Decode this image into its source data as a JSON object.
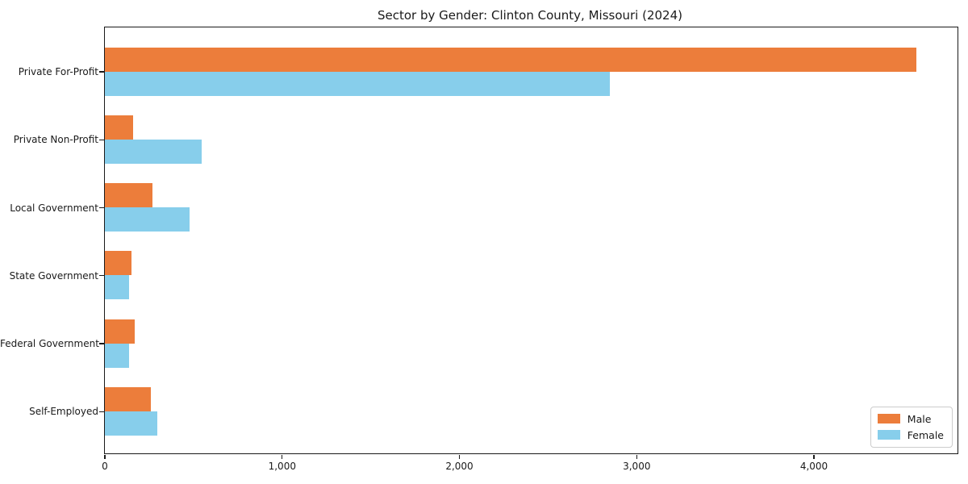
{
  "chart_data": {
    "type": "bar",
    "orientation": "horizontal",
    "title": "Sector by Gender: Clinton County, Missouri (2024)",
    "categories": [
      "Private For-Profit",
      "Private Non-Profit",
      "Local Government",
      "State Government",
      "Federal Government",
      "Self-Employed"
    ],
    "series": [
      {
        "name": "Male",
        "color": "#ec7d3b",
        "values": [
          4580,
          160,
          270,
          150,
          170,
          260
        ]
      },
      {
        "name": "Female",
        "color": "#87ceeb",
        "values": [
          2850,
          550,
          480,
          140,
          140,
          300
        ]
      }
    ],
    "xlabel": "",
    "ylabel": "",
    "xlim": [
      0,
      4810
    ],
    "xticks": [
      0,
      1000,
      2000,
      3000,
      4000
    ],
    "xtick_labels": [
      "0",
      "1,000",
      "2,000",
      "3,000",
      "4,000"
    ],
    "grid": false,
    "legend": {
      "position": "lower right",
      "entries": [
        "Male",
        "Female"
      ]
    }
  },
  "colors": {
    "spine": "#1a1a1a",
    "text": "#1a1a1a",
    "legend_border": "#cccccc",
    "background": "#ffffff"
  }
}
